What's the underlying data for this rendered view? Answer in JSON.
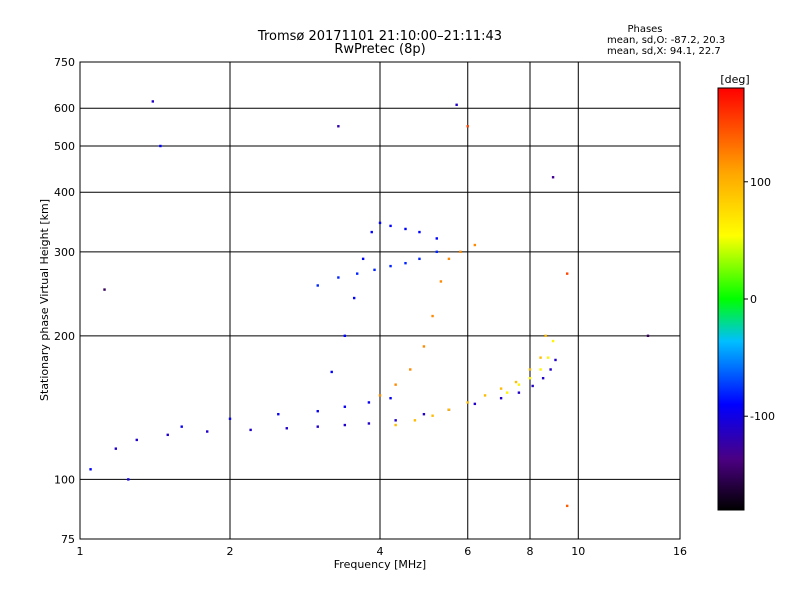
{
  "chart_data": {
    "type": "scatter",
    "title": "Tromsø 20171101 21:10:00–21:11:43",
    "subtitle": "RwPretec (8p)",
    "stats": {
      "heading": "Phases",
      "line_o": "mean, sd,O: -87.2, 20.3",
      "line_x": "mean, sd,X:  94.1, 22.7"
    },
    "xlabel": "Frequency [MHz]",
    "ylabel": "Stationary phase Virtual Height [km]",
    "x_scale": "log",
    "y_scale": "log",
    "xlim": [
      1,
      16
    ],
    "ylim": [
      75,
      750
    ],
    "x_ticks": [
      1,
      2,
      4,
      6,
      8,
      10,
      16
    ],
    "x_tick_labels": [
      "1",
      "2",
      "4",
      "6",
      "8",
      "10",
      "16"
    ],
    "y_ticks": [
      75,
      100,
      200,
      300,
      400,
      500,
      600,
      750
    ],
    "y_tick_labels": [
      "75",
      "100",
      "200",
      "300",
      "400",
      "500",
      "600",
      "750"
    ],
    "grid": true,
    "colorbar": {
      "label": "[deg]",
      "range": [
        -180,
        180
      ],
      "ticks": [
        100,
        0,
        -100
      ],
      "tick_labels": [
        "100",
        "0",
        "-100"
      ]
    },
    "traces": [
      {
        "phase_deg": -110,
        "points": [
          [
            1.18,
            116
          ],
          [
            1.3,
            121
          ],
          [
            1.5,
            124
          ],
          [
            1.8,
            126
          ],
          [
            2.2,
            127
          ],
          [
            2.6,
            128
          ],
          [
            3.0,
            129
          ],
          [
            3.4,
            130
          ],
          [
            3.8,
            131
          ],
          [
            4.3,
            133
          ],
          [
            4.9,
            137
          ],
          [
            5.5,
            140
          ],
          [
            6.2,
            144
          ],
          [
            7.0,
            148
          ],
          [
            7.6,
            152
          ],
          [
            8.1,
            157
          ],
          [
            8.5,
            163
          ],
          [
            8.8,
            170
          ],
          [
            9.0,
            178
          ]
        ]
      },
      {
        "phase_deg": -95,
        "points": [
          [
            1.6,
            129
          ],
          [
            2.0,
            134
          ],
          [
            2.5,
            137
          ],
          [
            3.0,
            139
          ],
          [
            3.4,
            142
          ],
          [
            3.8,
            145
          ],
          [
            4.2,
            148
          ]
        ]
      },
      {
        "phase_deg": -90,
        "points": [
          [
            3.2,
            168
          ],
          [
            3.4,
            200
          ],
          [
            3.55,
            240
          ],
          [
            3.7,
            290
          ],
          [
            3.85,
            330
          ],
          [
            4.0,
            345
          ],
          [
            4.2,
            340
          ],
          [
            4.5,
            335
          ],
          [
            4.8,
            330
          ],
          [
            5.2,
            320
          ]
        ]
      },
      {
        "phase_deg": -80,
        "points": [
          [
            3.0,
            255
          ],
          [
            3.3,
            265
          ],
          [
            3.6,
            270
          ],
          [
            3.9,
            275
          ],
          [
            4.2,
            280
          ],
          [
            4.5,
            284
          ],
          [
            4.8,
            290
          ],
          [
            5.2,
            300
          ]
        ]
      },
      {
        "phase_deg": 120,
        "points": [
          [
            4.0,
            150
          ],
          [
            4.3,
            158
          ],
          [
            4.6,
            170
          ],
          [
            4.9,
            190
          ],
          [
            5.1,
            220
          ],
          [
            5.3,
            260
          ],
          [
            5.5,
            290
          ],
          [
            5.8,
            300
          ],
          [
            6.2,
            310
          ]
        ]
      },
      {
        "phase_deg": 95,
        "points": [
          [
            4.3,
            130
          ],
          [
            4.7,
            133
          ],
          [
            5.1,
            136
          ],
          [
            5.5,
            140
          ],
          [
            6.0,
            145
          ],
          [
            6.5,
            150
          ],
          [
            7.0,
            155
          ],
          [
            7.5,
            160
          ],
          [
            8.0,
            170
          ],
          [
            8.4,
            180
          ],
          [
            8.6,
            200
          ]
        ]
      },
      {
        "phase_deg": 60,
        "points": [
          [
            7.2,
            152
          ],
          [
            7.6,
            158
          ],
          [
            8.0,
            163
          ],
          [
            8.4,
            170
          ],
          [
            8.7,
            180
          ],
          [
            8.9,
            195
          ]
        ]
      }
    ],
    "isolated_points": [
      {
        "x": 1.12,
        "y": 250,
        "phase_deg": -150
      },
      {
        "x": 1.4,
        "y": 620,
        "phase_deg": -110
      },
      {
        "x": 1.45,
        "y": 500,
        "phase_deg": -90
      },
      {
        "x": 3.3,
        "y": 550,
        "phase_deg": -120
      },
      {
        "x": 5.7,
        "y": 610,
        "phase_deg": -110
      },
      {
        "x": 6.0,
        "y": 550,
        "phase_deg": 150
      },
      {
        "x": 8.9,
        "y": 430,
        "phase_deg": -130
      },
      {
        "x": 9.5,
        "y": 270,
        "phase_deg": 150
      },
      {
        "x": 9.5,
        "y": 88,
        "phase_deg": 140
      },
      {
        "x": 13.8,
        "y": 200,
        "phase_deg": -150
      },
      {
        "x": 1.05,
        "y": 105,
        "phase_deg": -90
      },
      {
        "x": 1.25,
        "y": 100,
        "phase_deg": -100
      }
    ]
  }
}
